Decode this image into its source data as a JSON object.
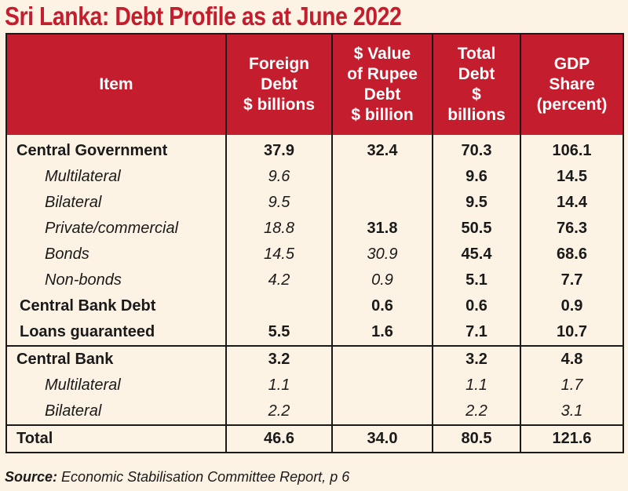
{
  "title": "Sri Lanka: Debt Profile as at June 2022",
  "header": {
    "item": "Item",
    "foreign": [
      "Foreign",
      "Debt",
      "$ billions"
    ],
    "rupee": [
      "$ Value",
      "of Rupee",
      "Debt",
      "$ billion"
    ],
    "total": [
      "Total",
      "Debt",
      "$",
      "billions"
    ],
    "gdp": [
      "GDP",
      "Share",
      "(percent)"
    ]
  },
  "rows": [
    {
      "item": "Central Government",
      "foreign": "37.9",
      "rupee": "32.4",
      "total": "70.3",
      "gdp": "106.1"
    },
    {
      "item": "Multilateral",
      "foreign": "9.6",
      "rupee": "",
      "total": "9.6",
      "gdp": "14.5"
    },
    {
      "item": "Bilateral",
      "foreign": "9.5",
      "rupee": "",
      "total": "9.5",
      "gdp": "14.4"
    },
    {
      "item": "Private/commercial",
      "foreign": "18.8",
      "rupee": "31.8",
      "total": "50.5",
      "gdp": "76.3"
    },
    {
      "item": "Bonds",
      "foreign": "14.5",
      "rupee": "30.9",
      "total": "45.4",
      "gdp": "68.6"
    },
    {
      "item": "Non-bonds",
      "foreign": "4.2",
      "rupee": "0.9",
      "total": "5.1",
      "gdp": "7.7"
    },
    {
      "item": "Central Bank Debt",
      "foreign": "",
      "rupee": "0.6",
      "total": "0.6",
      "gdp": "0.9"
    },
    {
      "item": "Loans guaranteed",
      "foreign": "5.5",
      "rupee": "1.6",
      "total": "7.1",
      "gdp": "10.7"
    },
    {
      "item": "Central Bank",
      "foreign": "3.2",
      "rupee": "",
      "total": "3.2",
      "gdp": "4.8"
    },
    {
      "item": "Multilateral",
      "foreign": "1.1",
      "rupee": "",
      "total": "1.1",
      "gdp": "1.7"
    },
    {
      "item": "Bilateral",
      "foreign": "2.2",
      "rupee": "",
      "total": "2.2",
      "gdp": "3.1"
    },
    {
      "item": "Total",
      "foreign": "46.6",
      "rupee": "34.0",
      "total": "80.5",
      "gdp": "121.6"
    }
  ],
  "source": {
    "label": "Source:",
    "text": "Economic Stabilisation Committee Report, p 6"
  },
  "colors": {
    "title": "#c41d2e",
    "header_bg": "#c41d2e",
    "page_bg": "#fdf3e4"
  }
}
